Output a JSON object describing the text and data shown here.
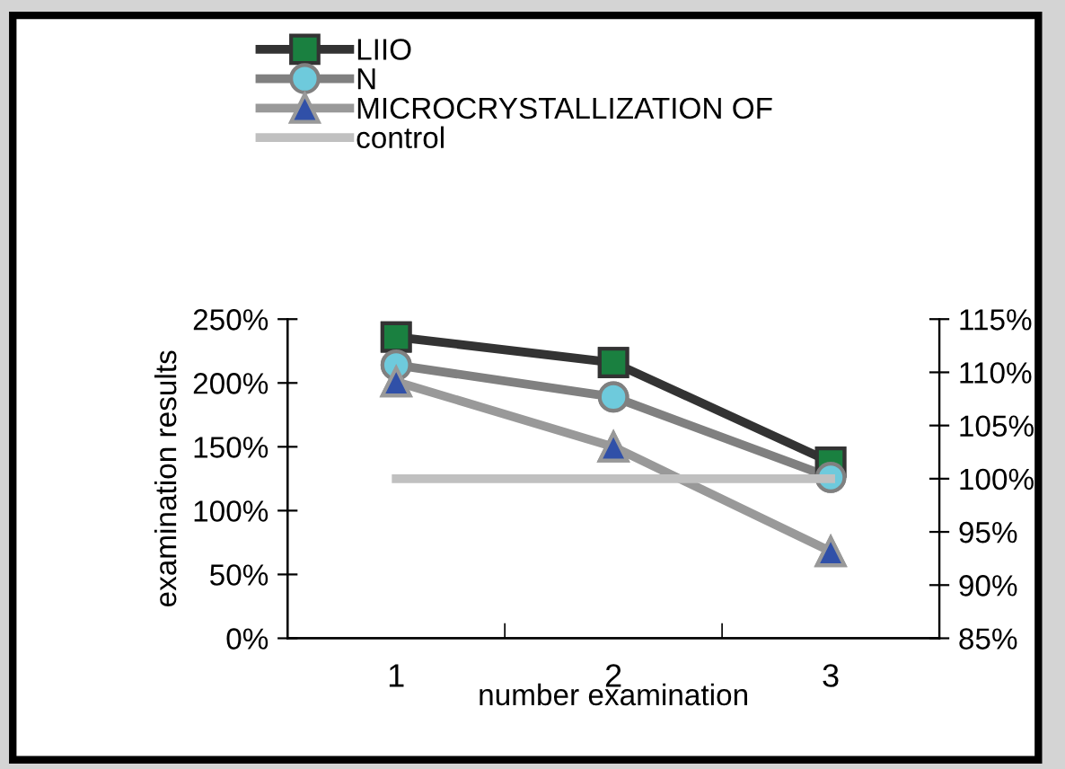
{
  "chart_data": {
    "type": "line",
    "xlabel": "number examination",
    "ylabel": "examination results",
    "categories": [
      "1",
      "2",
      "3"
    ],
    "series": [
      {
        "name": "LIIO",
        "color": "#333333",
        "marker": "square",
        "colors": [
          "#1a8040",
          "#1a8040",
          "#1a8040"
        ],
        "values": [
          236,
          216,
          138
        ]
      },
      {
        "name": "N",
        "color": "#808080",
        "marker": "circle",
        "colors": [
          "#6ecadc",
          "#6ecadc",
          "#6ecadc"
        ],
        "values": [
          214,
          189,
          126
        ]
      },
      {
        "name": "MICROCRYSTALLIZATION OF",
        "color": "#999999",
        "marker": "triangle",
        "colors": [
          "#3050a8",
          "#3050a8",
          "#3050a8"
        ],
        "values": [
          201,
          150,
          68
        ]
      },
      {
        "name": "control",
        "color": "#c0c0c0",
        "marker": "none",
        "axis": "y2",
        "values": [
          100,
          100,
          100
        ]
      }
    ],
    "ylim": [
      0,
      250
    ],
    "yticks": [
      {
        "value": 0,
        "label": "0%"
      },
      {
        "value": 50,
        "label": "50%"
      },
      {
        "value": 100,
        "label": "100%"
      },
      {
        "value": 150,
        "label": "150%"
      },
      {
        "value": 200,
        "label": "200%"
      },
      {
        "value": 250,
        "label": "250%"
      }
    ],
    "y2lim": [
      85,
      115
    ],
    "y2ticks": [
      {
        "value": 85,
        "label": "85%"
      },
      {
        "value": 90,
        "label": "90%"
      },
      {
        "value": 95,
        "label": "95%"
      },
      {
        "value": 100,
        "label": "100%"
      },
      {
        "value": 105,
        "label": "105%"
      },
      {
        "value": 110,
        "label": "110%"
      },
      {
        "value": 115,
        "label": "115%"
      }
    ],
    "grid": false,
    "legend": "top left"
  }
}
